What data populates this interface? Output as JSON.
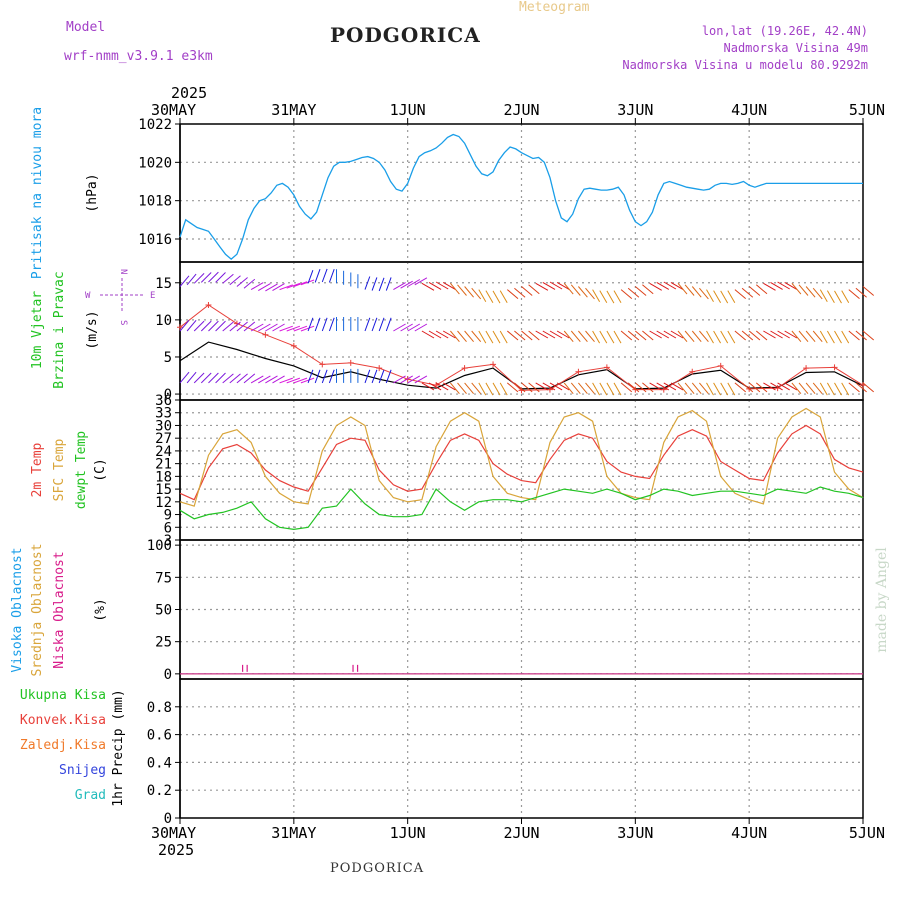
{
  "header": {
    "model_label": "Model",
    "model_name": "wrf-nmm_v3.9.1  e3km",
    "station": "PODGORICA",
    "product": "Meteogram",
    "coords": "lon,lat (19.26E, 42.4N)",
    "elevation": "Nadmorska Visina 49m",
    "model_elevation": "Nadmorska Visina u modelu 80.9292m",
    "footer_station": "PODGORICA",
    "credit": "made by Angel"
  },
  "colors": {
    "pressure": "#1a9ee8",
    "temp2m": "#e8403a",
    "sfc": "#d9a53a",
    "dew": "#22c322",
    "wind_black": "#000000",
    "gust": "#e8403a",
    "model": "#a23fc7",
    "cloud_high": "#1a9ee8",
    "cloud_mid": "#d9a53a",
    "cloud_low": "#d81b8a",
    "total": "#22c322",
    "conv": "#e8403a",
    "frozen": "#f07a2a",
    "snow": "#3344dd",
    "grad": "#22bcbc"
  },
  "time_axis": {
    "year": "2025",
    "labels": [
      "30MAY",
      "31MAY",
      "1JUN",
      "2JUN",
      "3JUN",
      "4JUN",
      "5JUN"
    ]
  },
  "chart_data": [
    {
      "type": "line",
      "id": "pressure",
      "ylabel_lines": [
        "Pritisak na nivou mora"
      ],
      "unit": "(hPa)",
      "ylim": [
        1014.8,
        1022.0
      ],
      "ticks": [
        1016,
        1018,
        1020,
        1022
      ],
      "x": [
        0,
        0.05,
        0.1,
        0.15,
        0.2,
        0.25,
        0.3,
        0.35,
        0.4,
        0.45,
        0.5,
        0.55,
        0.6,
        0.65,
        0.7,
        0.75,
        0.8,
        0.85,
        0.9,
        0.95,
        1.0,
        1.05,
        1.1,
        1.15,
        1.2,
        1.25,
        1.3,
        1.35,
        1.4,
        1.45,
        1.5,
        1.55,
        1.6,
        1.65,
        1.7,
        1.75,
        1.8,
        1.85,
        1.9,
        1.95,
        2.0,
        2.05,
        2.1,
        2.15,
        2.2,
        2.25,
        2.3,
        2.35,
        2.4,
        2.45,
        2.5,
        2.55,
        2.6,
        2.65,
        2.7,
        2.75,
        2.8,
        2.85,
        2.9,
        2.95,
        3.0,
        3.05,
        3.1,
        3.15,
        3.2,
        3.25,
        3.3,
        3.35,
        3.4,
        3.45,
        3.5,
        3.55,
        3.6,
        3.65,
        3.7,
        3.75,
        3.8,
        3.85,
        3.9,
        3.95,
        4.0,
        4.05,
        4.1,
        4.15,
        4.2,
        4.25,
        4.3,
        4.35,
        4.4,
        4.45,
        4.5,
        4.55,
        4.6,
        4.65,
        4.7,
        4.75,
        4.8,
        4.85,
        4.9,
        4.95,
        5.0,
        5.05,
        5.1,
        5.15,
        5.2,
        5.25,
        5.3,
        5.35,
        5.4,
        5.45,
        5.5,
        5.55,
        5.6,
        5.65,
        5.7,
        5.75,
        5.8,
        5.85,
        5.9,
        5.95,
        6.0
      ],
      "values": [
        1016.1,
        1017.0,
        1016.8,
        1016.6,
        1016.5,
        1016.4,
        1016.0,
        1015.6,
        1015.2,
        1014.95,
        1015.2,
        1016.0,
        1017.0,
        1017.6,
        1018.0,
        1018.1,
        1018.4,
        1018.8,
        1018.9,
        1018.7,
        1018.3,
        1017.7,
        1017.3,
        1017.05,
        1017.4,
        1018.3,
        1019.2,
        1019.8,
        1020.0,
        1020.0,
        1020.05,
        1020.15,
        1020.25,
        1020.3,
        1020.2,
        1020.0,
        1019.6,
        1019.0,
        1018.6,
        1018.5,
        1018.9,
        1019.7,
        1020.3,
        1020.5,
        1020.6,
        1020.75,
        1021.0,
        1021.3,
        1021.45,
        1021.35,
        1021.0,
        1020.4,
        1019.8,
        1019.4,
        1019.3,
        1019.5,
        1020.1,
        1020.5,
        1020.8,
        1020.7,
        1020.5,
        1020.35,
        1020.2,
        1020.25,
        1020.0,
        1019.2,
        1018.0,
        1017.1,
        1016.9,
        1017.3,
        1018.1,
        1018.6,
        1018.65,
        1018.6,
        1018.55,
        1018.55,
        1018.6,
        1018.7,
        1018.3,
        1017.5,
        1016.9,
        1016.7,
        1016.9,
        1017.4,
        1018.3,
        1018.9,
        1019.0,
        1018.9,
        1018.8,
        1018.7,
        1018.65,
        1018.6,
        1018.55,
        1018.6,
        1018.8,
        1018.9,
        1018.9,
        1018.85,
        1018.9,
        1019.0,
        1018.8,
        1018.7,
        1018.8,
        1018.9,
        1018.9,
        1018.9,
        1018.9,
        1018.9,
        1018.9,
        1018.9,
        1018.9,
        1018.9,
        1018.9,
        1018.9,
        1018.9,
        1018.9,
        1018.9,
        1018.9,
        1018.9,
        1018.9,
        1018.9
      ]
    },
    {
      "type": "line",
      "id": "wind",
      "ylabel_lines": [
        "10m Vjetar",
        "Brzina i Pravac"
      ],
      "unit": "(m/s)",
      "compass": {
        "n": "N",
        "s": "S",
        "w": "W",
        "e": "E"
      },
      "ylim": [
        -0.8,
        17.8
      ],
      "ticks": [
        0,
        5,
        10,
        15
      ],
      "x": [
        0,
        0.25,
        0.5,
        0.75,
        1.0,
        1.25,
        1.5,
        1.75,
        2.0,
        2.25,
        2.5,
        2.75,
        3.0,
        3.25,
        3.5,
        3.75,
        4.0,
        4.25,
        4.5,
        4.75,
        5.0,
        5.25,
        5.5,
        5.75,
        6.0
      ],
      "speed": [
        4.5,
        7.0,
        6.0,
        4.8,
        3.8,
        2.2,
        3.0,
        2.0,
        1.2,
        0.8,
        2.5,
        3.5,
        0.7,
        0.8,
        2.6,
        3.3,
        0.7,
        0.8,
        2.7,
        3.2,
        0.8,
        0.9,
        2.9,
        3.0,
        1.1
      ],
      "gust": [
        9.0,
        12.0,
        9.5,
        8.0,
        6.5,
        4.0,
        4.2,
        3.5,
        2.0,
        1.2,
        3.5,
        4.0,
        0.5,
        0.6,
        3.0,
        3.6,
        0.6,
        0.6,
        3.0,
        3.8,
        0.7,
        0.8,
        3.5,
        3.6,
        1.2
      ],
      "dir_deg": [
        220,
        225,
        230,
        240,
        250,
        200,
        180,
        200,
        240,
        300,
        320,
        330,
        310,
        300,
        320,
        330,
        310,
        300,
        320,
        330,
        310,
        300,
        320,
        330,
        310
      ]
    },
    {
      "type": "line",
      "id": "temperature",
      "ylabel_lines": [
        "2m Temp",
        "SFC Temp",
        "dewpt Temp"
      ],
      "unit": "(C)",
      "ylim": [
        3,
        36
      ],
      "ticks": [
        3,
        6,
        9,
        12,
        15,
        18,
        21,
        24,
        27,
        30,
        33,
        36
      ],
      "x": [
        0,
        0.125,
        0.25,
        0.375,
        0.5,
        0.625,
        0.75,
        0.875,
        1.0,
        1.125,
        1.25,
        1.375,
        1.5,
        1.625,
        1.75,
        1.875,
        2.0,
        2.125,
        2.25,
        2.375,
        2.5,
        2.625,
        2.75,
        2.875,
        3.0,
        3.125,
        3.25,
        3.375,
        3.5,
        3.625,
        3.75,
        3.875,
        4.0,
        4.125,
        4.25,
        4.375,
        4.5,
        4.625,
        4.75,
        4.875,
        5.0,
        5.125,
        5.25,
        5.375,
        5.5,
        5.625,
        5.75,
        5.875,
        6.0
      ],
      "series": [
        {
          "name": "2m Temp",
          "values": [
            14,
            12.5,
            20,
            24.5,
            25.5,
            23.5,
            19.5,
            17,
            15.5,
            14.5,
            20,
            25.5,
            27,
            26.5,
            19.5,
            16,
            14.5,
            15,
            21,
            26.5,
            28,
            26.5,
            21,
            18.5,
            17,
            16.5,
            22,
            26.5,
            28,
            27,
            21.5,
            19,
            18,
            17.5,
            23,
            27.5,
            29,
            27.5,
            21.5,
            19.5,
            17.5,
            17,
            23.5,
            28,
            30,
            28,
            22,
            20,
            19
          ]
        },
        {
          "name": "SFC Temp",
          "values": [
            12,
            11,
            23,
            28,
            29,
            26,
            18,
            14,
            12,
            11.5,
            24,
            30,
            32,
            30,
            17,
            13,
            12,
            12.5,
            25,
            31,
            33,
            31,
            18,
            14,
            13,
            12.5,
            26,
            32,
            33,
            31,
            18,
            14,
            13,
            12.5,
            26,
            32,
            33.5,
            31,
            18,
            14,
            12.5,
            11.5,
            27,
            32,
            34,
            32,
            19,
            15,
            13
          ]
        },
        {
          "name": "dewpt Temp",
          "values": [
            10,
            8,
            9,
            9.5,
            10.5,
            12,
            8,
            6,
            5.5,
            6,
            10.5,
            11,
            15,
            11.5,
            9,
            8.5,
            8.5,
            9,
            15,
            12,
            10,
            12,
            12.5,
            12.5,
            12,
            13,
            14,
            15,
            14.5,
            14,
            15,
            14,
            12.5,
            13.5,
            15,
            14.5,
            13.5,
            14,
            14.5,
            14.5,
            14,
            13.5,
            15,
            14.5,
            14,
            15.5,
            14.5,
            14,
            13
          ]
        }
      ]
    },
    {
      "type": "line",
      "id": "cloud",
      "ylabel_lines": [
        "Visoka Oblacnost",
        "Srednja Oblacnost",
        "Niska Oblacnost"
      ],
      "unit": "(%)",
      "ylim": [
        -4,
        104
      ],
      "ticks": [
        0,
        25,
        50,
        75,
        100
      ],
      "x": [
        0,
        6
      ],
      "series": [
        {
          "name": "Visoka Oblacnost",
          "values": [
            0,
            0
          ]
        },
        {
          "name": "Srednja Oblacnost",
          "values": [
            0,
            0
          ]
        },
        {
          "name": "Niska Oblacnost",
          "values": [
            0,
            0
          ]
        }
      ],
      "markers_x": [
        0.55,
        0.59,
        1.52,
        1.56
      ]
    },
    {
      "type": "bar",
      "id": "precip",
      "ylabel_lines": [
        "1hr Precip"
      ],
      "unit": "(mm)",
      "legend": [
        "Ukupna Kisa",
        "Konvek.Kisa",
        "Zaledj.Kisa",
        "Snijeg",
        "Grad"
      ],
      "ylim": [
        0,
        1.0
      ],
      "ticks": [
        0,
        0.2,
        0.4,
        0.6,
        0.8
      ],
      "categories": [
        "30MAY",
        "31MAY",
        "1JUN",
        "2JUN",
        "3JUN",
        "4JUN",
        "5JUN"
      ],
      "values": [
        0,
        0,
        0,
        0,
        0,
        0,
        0
      ]
    }
  ]
}
